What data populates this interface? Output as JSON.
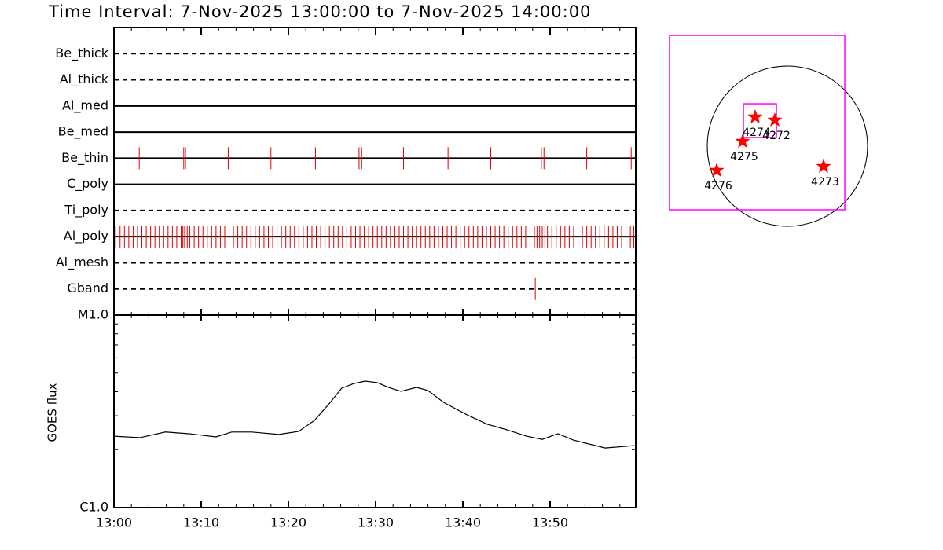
{
  "chart_data": [
    {
      "type": "timeline",
      "title": "Time Interval:  7-Nov-2025 13:00:00 to  7-Nov-2025 14:00:00",
      "xlim": [
        0,
        60
      ],
      "color": "#e00000",
      "series": [
        {
          "name": "Be_thick",
          "line_style": "dashed",
          "values": []
        },
        {
          "name": "Al_thick",
          "line_style": "dashed",
          "values": []
        },
        {
          "name": "Al_med",
          "line_style": "solid",
          "values": []
        },
        {
          "name": "Be_med",
          "line_style": "solid",
          "values": []
        },
        {
          "name": "Be_thin",
          "line_style": "solid",
          "values": [
            2.9,
            8.0,
            8.2,
            13.1,
            18.0,
            23.1,
            28.1,
            28.4,
            33.2,
            38.3,
            43.2,
            49.0,
            49.3,
            54.2,
            59.3
          ]
        },
        {
          "name": "C_poly",
          "line_style": "solid",
          "values": []
        },
        {
          "name": "Ti_poly",
          "line_style": "dashed",
          "values": []
        },
        {
          "name": "Al_poly",
          "line_style": "solid",
          "values": [
            0.2,
            0.7,
            1.2,
            1.7,
            2.2,
            2.7,
            3.2,
            3.7,
            4.2,
            4.7,
            5.2,
            5.7,
            6.2,
            6.7,
            7.2,
            7.7,
            7.9,
            8.1,
            8.4,
            8.7,
            9.2,
            9.7,
            10.2,
            10.7,
            11.2,
            11.7,
            12.2,
            12.7,
            13.2,
            13.7,
            14.2,
            14.7,
            15.2,
            15.7,
            16.2,
            16.7,
            17.2,
            17.7,
            18.2,
            18.7,
            19.2,
            19.7,
            20.2,
            20.7,
            21.2,
            21.7,
            22.2,
            22.7,
            23.2,
            23.7,
            24.2,
            24.7,
            25.2,
            25.7,
            26.2,
            26.7,
            27.2,
            27.7,
            28.2,
            28.7,
            29.2,
            29.7,
            30.2,
            30.7,
            31.2,
            31.7,
            32.2,
            32.7,
            33.2,
            33.7,
            34.2,
            34.7,
            35.2,
            35.7,
            36.2,
            36.7,
            37.2,
            37.7,
            38.2,
            38.7,
            39.2,
            39.7,
            40.2,
            40.7,
            41.2,
            41.7,
            42.2,
            42.7,
            43.2,
            43.7,
            44.2,
            44.7,
            45.2,
            45.7,
            46.2,
            46.7,
            47.2,
            47.7,
            48.2,
            48.5,
            48.8,
            49.1,
            49.4,
            49.7,
            50.2,
            50.7,
            51.2,
            51.7,
            52.2,
            52.7,
            53.2,
            53.7,
            54.2,
            54.7,
            55.2,
            55.7,
            56.2,
            56.7,
            57.2,
            57.7,
            58.2,
            58.7,
            59.2,
            59.6
          ]
        },
        {
          "name": "Al_mesh",
          "line_style": "dashed",
          "values": []
        },
        {
          "name": "Gband",
          "line_style": "dashed",
          "values": [
            48.3
          ]
        }
      ]
    },
    {
      "type": "line",
      "ylabel": "GOES flux",
      "color": "#000000",
      "ylog": true,
      "x": [
        0,
        3,
        5.9,
        8.6,
        11.7,
        13.5,
        15.8,
        18.9,
        21.2,
        23,
        24.8,
        26.1,
        27.5,
        28.8,
        30.2,
        31.5,
        32.9,
        34.7,
        36,
        37.8,
        40.5,
        42.8,
        45,
        47.3,
        49.1,
        50.9,
        52.7,
        56.3,
        59.7
      ],
      "values": [
        2.35e-06,
        2.31e-06,
        2.47e-06,
        2.42e-06,
        2.33e-06,
        2.47e-06,
        2.47e-06,
        2.4e-06,
        2.49e-06,
        2.84e-06,
        3.52e-06,
        4.17e-06,
        4.41e-06,
        4.54e-06,
        4.46e-06,
        4.21e-06,
        4.02e-06,
        4.21e-06,
        4.06e-06,
        3.52e-06,
        3.03e-06,
        2.71e-06,
        2.54e-06,
        2.35e-06,
        2.26e-06,
        2.42e-06,
        2.24e-06,
        2.04e-06,
        2.1e-06
      ],
      "xlim": [
        0,
        60
      ],
      "xticks": [
        {
          "value": 0,
          "label": "13:00"
        },
        {
          "value": 10,
          "label": "13:10"
        },
        {
          "value": 20,
          "label": "13:20"
        },
        {
          "value": 30,
          "label": "13:30"
        },
        {
          "value": 40,
          "label": "13:40"
        },
        {
          "value": 50,
          "label": "13:50"
        }
      ],
      "xminor": [
        2,
        4,
        6,
        8,
        12,
        14,
        16,
        18,
        22,
        24,
        26,
        28,
        32,
        34,
        36,
        38,
        42,
        44,
        46,
        48,
        52,
        54,
        56,
        58
      ],
      "ylim": [
        1e-06,
        1e-05
      ],
      "yticks": [
        {
          "value": 1e-06,
          "label": "C1.0"
        },
        {
          "value": 1e-05,
          "label": "M1.0"
        }
      ],
      "yminor": [
        2e-06,
        3e-06,
        4e-06,
        5e-06,
        6e-06,
        7e-06,
        8e-06,
        9e-06
      ]
    },
    {
      "type": "map",
      "disk_radius": 1,
      "box_color": "#ff00ff",
      "color": "#ff0000",
      "boxes": [
        {
          "x": [
            -1.471,
            0.716
          ],
          "y": [
            -0.794,
            1.382
          ]
        },
        {
          "x": [
            -0.549,
            -0.137
          ],
          "y": [
            0.108,
            0.529
          ]
        }
      ],
      "categories": [
        "4274",
        "4272",
        "4275",
        "4276",
        "4273"
      ],
      "x": [
        -0.402,
        -0.157,
        -0.559,
        -0.882,
        0.451
      ],
      "y": [
        0.363,
        0.324,
        0.059,
        -0.304,
        -0.255
      ]
    }
  ]
}
